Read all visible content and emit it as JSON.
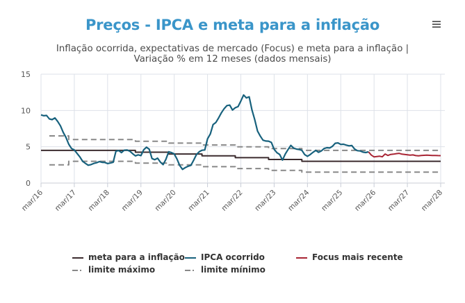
{
  "header": {
    "title": "Preços - IPCA e meta para a inflação",
    "subtitle_line1": "Inflação ocorrida, expectativas de mercado (Focus) e meta para a inflação |",
    "subtitle_line2": "Variação % em 12 meses (dados mensais)",
    "menu_icon": "hamburger-menu-icon"
  },
  "colors": {
    "title": "#3a95c9",
    "meta": "#3b2b2e",
    "ipca": "#17617d",
    "focus": "#a82433",
    "limits": "#888888",
    "grid": "#dde1e8"
  },
  "chart_data": {
    "type": "line",
    "title": "Preços - IPCA e meta para a inflação",
    "ylim": [
      0,
      15
    ],
    "yticks": [
      "0",
      "5",
      "10",
      "15"
    ],
    "ytick_values": [
      0,
      5,
      10,
      15
    ],
    "xticks": [
      "mar/16",
      "mar/17",
      "mar/18",
      "mar/19",
      "mar/20",
      "mar/21",
      "mar/22",
      "mar/23",
      "mar/24",
      "mar/25",
      "mar/26",
      "mar/27",
      "mar/28"
    ],
    "x_unit": "months since mar/16",
    "xlim": [
      0,
      144
    ],
    "grid": true,
    "legend_position": "bottom",
    "legend": [
      {
        "name": "meta para a inflação",
        "style": "solid",
        "color": "#3b2b2e"
      },
      {
        "name": "IPCA ocorrido",
        "style": "solid",
        "color": "#17617d"
      },
      {
        "name": "Focus mais recente",
        "style": "solid",
        "color": "#a82433"
      },
      {
        "name": "limite máximo",
        "style": "dash",
        "color": "#888888"
      },
      {
        "name": "limite mínimo",
        "style": "dash",
        "color": "#888888"
      }
    ],
    "series": [
      {
        "name": "meta para a inflação",
        "steps": [
          [
            0,
            4.5
          ],
          [
            22,
            4.5
          ],
          [
            34,
            4.5
          ],
          [
            34,
            4.25
          ],
          [
            46,
            4.25
          ],
          [
            46,
            4.0
          ],
          [
            58,
            4.0
          ],
          [
            58,
            3.75
          ],
          [
            70,
            3.75
          ],
          [
            70,
            3.5
          ],
          [
            82,
            3.5
          ],
          [
            82,
            3.25
          ],
          [
            94,
            3.25
          ],
          [
            94,
            3.0
          ],
          [
            144,
            3.0
          ]
        ]
      },
      {
        "name": "limite máximo",
        "steps": [
          [
            3,
            6.5
          ],
          [
            10,
            6.5
          ],
          [
            10,
            6.0
          ],
          [
            34,
            6.0
          ],
          [
            34,
            5.75
          ],
          [
            46,
            5.75
          ],
          [
            46,
            5.5
          ],
          [
            58,
            5.5
          ],
          [
            58,
            5.25
          ],
          [
            70,
            5.25
          ],
          [
            70,
            5.0
          ],
          [
            82,
            5.0
          ],
          [
            82,
            4.75
          ],
          [
            94,
            4.75
          ],
          [
            94,
            4.5
          ],
          [
            144,
            4.5
          ]
        ]
      },
      {
        "name": "limite mínimo",
        "steps": [
          [
            3,
            2.5
          ],
          [
            10,
            2.5
          ],
          [
            10,
            3.0
          ],
          [
            34,
            3.0
          ],
          [
            34,
            2.75
          ],
          [
            46,
            2.75
          ],
          [
            46,
            2.5
          ],
          [
            58,
            2.5
          ],
          [
            58,
            2.25
          ],
          [
            70,
            2.25
          ],
          [
            70,
            2.0
          ],
          [
            82,
            2.0
          ],
          [
            82,
            1.75
          ],
          [
            94,
            1.75
          ],
          [
            94,
            1.5
          ],
          [
            144,
            1.5
          ]
        ]
      },
      {
        "name": "IPCA ocorrido",
        "start_month": 0,
        "values": [
          9.39,
          9.28,
          9.32,
          8.84,
          8.74,
          8.97,
          8.48,
          7.87,
          6.99,
          6.29,
          5.35,
          4.76,
          4.57,
          4.08,
          3.6,
          3.0,
          2.71,
          2.46,
          2.54,
          2.7,
          2.8,
          2.95,
          2.86,
          2.84,
          2.68,
          2.76,
          2.86,
          4.39,
          4.48,
          4.19,
          4.53,
          4.56,
          4.39,
          4.05,
          3.75,
          3.89,
          3.78,
          4.58,
          4.94,
          4.66,
          3.37,
          3.22,
          3.43,
          2.89,
          2.54,
          3.27,
          4.31,
          4.19,
          4.01,
          3.3,
          2.4,
          1.88,
          2.13,
          2.31,
          2.44,
          3.14,
          3.92,
          4.31,
          4.52,
          4.56,
          6.1,
          6.76,
          8.06,
          8.35,
          8.99,
          9.68,
          10.25,
          10.67,
          10.74,
          10.06,
          10.38,
          10.54,
          11.3,
          12.13,
          11.73,
          11.89,
          10.07,
          8.73,
          7.17,
          6.47,
          5.9,
          5.79,
          5.77,
          5.6,
          4.65,
          4.18,
          3.94,
          3.16,
          3.99,
          4.61,
          5.19,
          4.82,
          4.68,
          4.62,
          4.51,
          3.93,
          3.69,
          3.93,
          4.23,
          4.5,
          4.23,
          4.42,
          4.76,
          4.87,
          4.83,
          5.06,
          5.48,
          5.53,
          5.32,
          5.35,
          5.23,
          5.13,
          5.17,
          4.68,
          4.46,
          4.42,
          4.26,
          4.2,
          4.3
        ]
      },
      {
        "name": "Focus mais recente",
        "start_month": 118,
        "values": [
          4.3,
          3.85,
          3.6,
          3.65,
          3.7,
          3.62,
          4.0,
          3.8,
          3.95,
          3.98,
          4.05,
          4.1,
          3.98,
          3.95,
          3.9,
          3.85,
          3.88,
          3.78,
          3.75,
          3.8,
          3.82,
          3.84,
          3.82,
          3.8,
          3.8,
          3.78,
          3.77
        ]
      }
    ]
  }
}
